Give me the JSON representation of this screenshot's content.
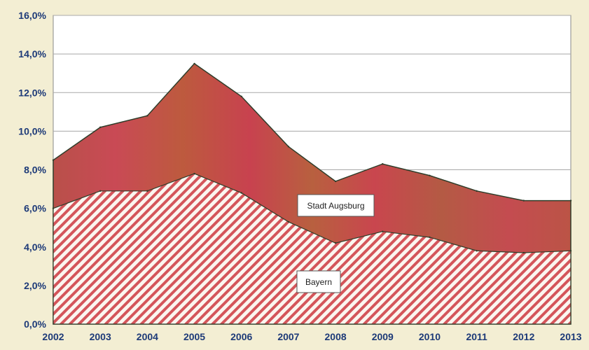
{
  "chart_data": {
    "type": "area",
    "categories": [
      "2002",
      "2003",
      "2004",
      "2005",
      "2006",
      "2007",
      "2008",
      "2009",
      "2010",
      "2011",
      "2012",
      "2013"
    ],
    "series": [
      {
        "name": "Bayern",
        "values": [
          6.0,
          6.9,
          6.9,
          7.8,
          6.8,
          5.3,
          4.2,
          4.8,
          4.5,
          3.8,
          3.7,
          3.8
        ],
        "color": "#d8504a",
        "pattern": "diagonal-hatch"
      },
      {
        "name": "Stadt Augsburg",
        "values": [
          8.5,
          10.2,
          10.8,
          13.5,
          11.8,
          9.2,
          7.4,
          8.3,
          7.7,
          6.9,
          6.4,
          6.4
        ],
        "color": "#c7463f",
        "pattern": "mottled"
      }
    ],
    "ylim": [
      0,
      16
    ],
    "yticks": [
      "0,0%",
      "2,0%",
      "4,0%",
      "6,0%",
      "8,0%",
      "10,0%",
      "12,0%",
      "14,0%",
      "16,0%"
    ],
    "grid": true,
    "title": "",
    "xlabel": "",
    "ylabel": ""
  }
}
